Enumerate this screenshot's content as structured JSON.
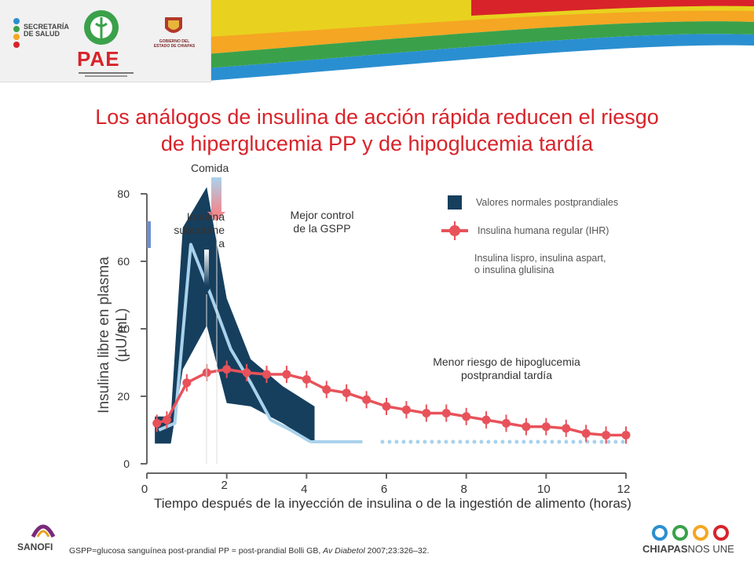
{
  "header": {
    "logo_secretaria_line1": "SECRETARÍA",
    "logo_secretaria_line2": "DE SALUD",
    "logo_pae": "PAE",
    "logo_gobierno_line1": "GOBIERNO DEL",
    "logo_gobierno_line2": "ESTADO DE CHIAPAS"
  },
  "title": {
    "line1": "Los análogos de insulina de acción rápida reducen el riesgo",
    "line2": "de hiperglucemia PP y de hipoglucemia tardía"
  },
  "annotations": {
    "comida": "Comida",
    "insulina_line1": "Insulina",
    "insulina_line2": "subcutáne",
    "insulina_line3": "a",
    "mejor_line1": "Mejor control",
    "mejor_line2": "de la GSPP",
    "menor_line1": "Menor riesgo de hipoglucemia",
    "menor_line2": "postprandial tardía"
  },
  "footer": {
    "footnote_main": "GSPP=glucosa sanguínea post-prandial PP = post-prandial Bolli GB,",
    "footnote_journal": "Av Diabetol",
    "footnote_tail": "2007;23:326–32.",
    "sanofi": "SANOFI",
    "chiapas_bold": "CHIAPAS",
    "chiapas_rest": "NOS UNE"
  },
  "colors": {
    "title_red": "#d8232a",
    "band_navy": "#163f5e",
    "ihr_red": "#e8525a",
    "analog_lightblue": "#a9d2ec"
  },
  "chart_data": {
    "type": "line",
    "xlabel": "Tiempo después de la inyección de insulina o de la ingestión de alimento (horas)",
    "ylabel_line1": "Insulina libre en plasma",
    "ylabel_line2": "(µU/mL)",
    "xlim": [
      0,
      12
    ],
    "ylim": [
      0,
      80
    ],
    "xticks": [
      "0",
      "2",
      "4",
      "6",
      "8",
      "10",
      "12"
    ],
    "yticks": [
      "0",
      "20",
      "40",
      "60",
      "80"
    ],
    "grid": false,
    "legend": {
      "position": "top-right",
      "normal_range": "Valores normales postprandiales",
      "ihr": "Insulina humana regular (IHR)",
      "analog_line1": "Insulina lispro, insulina aspart,",
      "analog_line2": "o insulina glulisina"
    },
    "series": [
      {
        "name": "Insulina humana regular (IHR)",
        "color": "#e8525a",
        "x": [
          0.25,
          0.5,
          1.0,
          1.5,
          2.0,
          2.5,
          3.0,
          3.5,
          4.0,
          4.5,
          5.0,
          5.5,
          6.0,
          6.5,
          7.0,
          7.5,
          8.0,
          8.5,
          9.0,
          9.5,
          10.0,
          10.5,
          11.0,
          11.5,
          12.0
        ],
        "y": [
          12,
          13,
          24,
          27,
          28,
          27,
          26.5,
          26.5,
          25,
          22,
          21,
          19,
          17,
          16,
          15,
          15,
          14,
          13,
          12,
          11,
          11,
          10.5,
          9,
          8.5,
          8.5
        ]
      },
      {
        "name": "Insulina lispro, insulina aspart, o insulina glulisina",
        "color": "#a9d2ec",
        "x": [
          0.3,
          0.7,
          1.1,
          1.6,
          2.1,
          2.6,
          3.1,
          3.6,
          4.1
        ],
        "y": [
          10,
          12,
          65,
          50,
          34,
          24,
          13,
          10,
          6.5
        ],
        "tail_solid": [
          [
            4.1,
            6.5
          ],
          [
            5.4,
            6.5
          ]
        ],
        "tail_dotted": [
          [
            5.9,
            6.5
          ],
          [
            12.0,
            6.5
          ]
        ]
      }
    ],
    "normal_band": {
      "name": "Valores normales postprandiales",
      "upper": [
        [
          0.2,
          14
        ],
        [
          0.6,
          14
        ],
        [
          0.9,
          70
        ],
        [
          1.5,
          82
        ],
        [
          2.0,
          49
        ],
        [
          2.6,
          31
        ],
        [
          3.4,
          23
        ],
        [
          4.2,
          17
        ]
      ],
      "lower": [
        [
          0.2,
          6
        ],
        [
          0.6,
          6
        ],
        [
          0.9,
          28
        ],
        [
          1.5,
          41
        ],
        [
          2.0,
          18
        ],
        [
          2.6,
          17
        ],
        [
          3.4,
          12
        ],
        [
          4.2,
          6
        ]
      ]
    }
  }
}
